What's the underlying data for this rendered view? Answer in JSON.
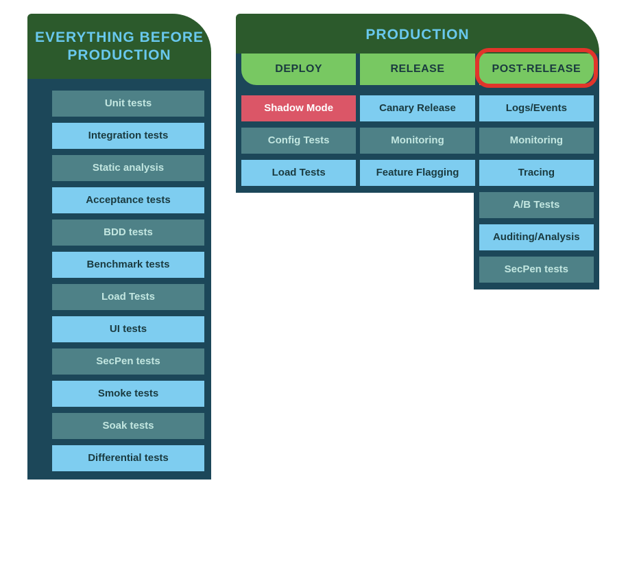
{
  "colors": {
    "dark_green": "#2c5a2c",
    "dark_teal": "#1c4759",
    "muted_teal": "#4e8187",
    "light_blue": "#7ecdf0",
    "tab_green": "#78c862",
    "highlight_red": "#e1352b",
    "shadow_red": "#db5667",
    "title_cyan": "#69c8ed",
    "text_dark": "#1a3a3f",
    "text_light": "#c2e6e0",
    "text_white": "#ffffff"
  },
  "typography": {
    "title_fontsize": 21,
    "tab_fontsize": 16,
    "item_fontsize": 15
  },
  "layout": {
    "left_width": 268,
    "right_width": 530,
    "item_height": 38,
    "tab_height": 46,
    "header_corner_radius_tr": 56
  },
  "left": {
    "title": "EVERYTHING BEFORE PRODUCTION",
    "items": [
      {
        "label": "Unit tests",
        "bg": "#4e8187",
        "fg": "#c2e6e0",
        "weight": 600
      },
      {
        "label": "Integration tests",
        "bg": "#7ecdf0",
        "fg": "#1a3a3f",
        "weight": 700
      },
      {
        "label": "Static analysis",
        "bg": "#4e8187",
        "fg": "#c2e6e0",
        "weight": 600
      },
      {
        "label": "Acceptance tests",
        "bg": "#7ecdf0",
        "fg": "#1a3a3f",
        "weight": 700
      },
      {
        "label": "BDD tests",
        "bg": "#4e8187",
        "fg": "#c2e6e0",
        "weight": 600
      },
      {
        "label": "Benchmark tests",
        "bg": "#7ecdf0",
        "fg": "#1a3a3f",
        "weight": 700
      },
      {
        "label": "Load Tests",
        "bg": "#4e8187",
        "fg": "#c2e6e0",
        "weight": 600
      },
      {
        "label": "UI tests",
        "bg": "#7ecdf0",
        "fg": "#1a3a3f",
        "weight": 700
      },
      {
        "label": "SecPen tests",
        "bg": "#4e8187",
        "fg": "#c2e6e0",
        "weight": 600
      },
      {
        "label": "Smoke tests",
        "bg": "#7ecdf0",
        "fg": "#1a3a3f",
        "weight": 700
      },
      {
        "label": "Soak tests",
        "bg": "#4e8187",
        "fg": "#c2e6e0",
        "weight": 600
      },
      {
        "label": "Differential tests",
        "bg": "#7ecdf0",
        "fg": "#1a3a3f",
        "weight": 700
      }
    ]
  },
  "right": {
    "title": "PRODUCTION",
    "tabs": [
      {
        "label": "DEPLOY",
        "highlighted": false
      },
      {
        "label": "RELEASE",
        "highlighted": false
      },
      {
        "label": "POST-RELEASE",
        "highlighted": true
      }
    ],
    "columns": [
      {
        "items": [
          {
            "label": "Shadow Mode",
            "bg": "#db5667",
            "fg": "#ffffff",
            "weight": 700
          },
          {
            "label": "Config Tests",
            "bg": "#4e8187",
            "fg": "#c2e6e0",
            "weight": 600
          },
          {
            "label": "Load Tests",
            "bg": "#7ecdf0",
            "fg": "#1a3a3f",
            "weight": 700
          }
        ]
      },
      {
        "items": [
          {
            "label": "Canary Release",
            "bg": "#7ecdf0",
            "fg": "#1a3a3f",
            "weight": 700
          },
          {
            "label": "Monitoring",
            "bg": "#4e8187",
            "fg": "#c2e6e0",
            "weight": 600
          },
          {
            "label": "Feature Flagging",
            "bg": "#7ecdf0",
            "fg": "#1a3a3f",
            "weight": 700
          }
        ]
      },
      {
        "items": [
          {
            "label": "Logs/Events",
            "bg": "#7ecdf0",
            "fg": "#1a3a3f",
            "weight": 700
          },
          {
            "label": "Monitoring",
            "bg": "#4e8187",
            "fg": "#c2e6e0",
            "weight": 600
          },
          {
            "label": "Tracing",
            "bg": "#7ecdf0",
            "fg": "#1a3a3f",
            "weight": 700
          },
          {
            "label": "A/B Tests",
            "bg": "#4e8187",
            "fg": "#c2e6e0",
            "weight": 600
          },
          {
            "label": "Auditing/Analysis",
            "bg": "#7ecdf0",
            "fg": "#1a3a3f",
            "weight": 700
          },
          {
            "label": "SecPen tests",
            "bg": "#4e8187",
            "fg": "#c2e6e0",
            "weight": 600
          }
        ]
      }
    ]
  }
}
